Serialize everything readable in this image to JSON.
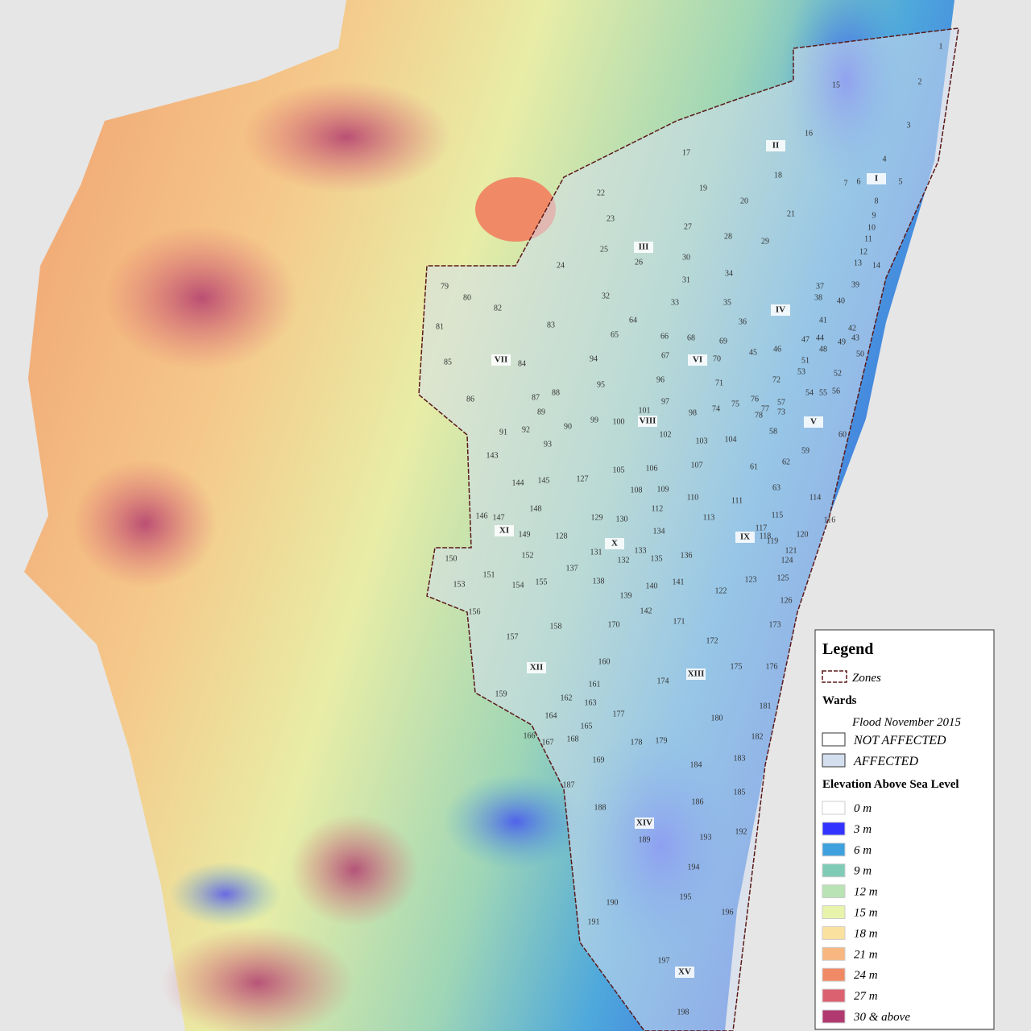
{
  "legend": {
    "title": "Legend",
    "zones_label": "Zones",
    "wards_heading": "Wards",
    "flood_heading": "Flood November 2015",
    "flood_items": [
      {
        "label": "NOT AFFECTED",
        "color": "#ffffff"
      },
      {
        "label": "AFFECTED",
        "color": "#d3dfee"
      }
    ],
    "elevation_heading": "Elevation Above Sea Level",
    "elevation_items": [
      {
        "label": "0 m",
        "color": "#ffffff"
      },
      {
        "label": "3 m",
        "color": "#3333ff"
      },
      {
        "label": "6 m",
        "color": "#3ea0dc"
      },
      {
        "label": "9 m",
        "color": "#7fcbb6"
      },
      {
        "label": "12 m",
        "color": "#b9e3b4"
      },
      {
        "label": "15 m",
        "color": "#e8f3ab"
      },
      {
        "label": "18 m",
        "color": "#fbe1a0"
      },
      {
        "label": "21 m",
        "color": "#f8b781"
      },
      {
        "label": "24 m",
        "color": "#f08a66"
      },
      {
        "label": "27 m",
        "color": "#dc6170"
      },
      {
        "label": "30 & above",
        "color": "#b03a70"
      }
    ]
  },
  "zones": [
    "I",
    "II",
    "III",
    "IV",
    "V",
    "VI",
    "VII",
    "VIII",
    "IX",
    "X",
    "XI",
    "XII",
    "XIII",
    "XIV",
    "XV"
  ],
  "wards": [
    "1",
    "2",
    "3",
    "4",
    "5",
    "6",
    "7",
    "8",
    "9",
    "10",
    "11",
    "12",
    "13",
    "14",
    "15",
    "16",
    "17",
    "18",
    "19",
    "20",
    "21",
    "22",
    "23",
    "24",
    "25",
    "26",
    "27",
    "28",
    "29",
    "30",
    "31",
    "32",
    "33",
    "34",
    "35",
    "36",
    "37",
    "38",
    "39",
    "40",
    "41",
    "42",
    "43",
    "44",
    "45",
    "46",
    "47",
    "48",
    "49",
    "50",
    "51",
    "52",
    "53",
    "54",
    "55",
    "56",
    "57",
    "58",
    "59",
    "60",
    "61",
    "62",
    "63",
    "64",
    "65",
    "66",
    "67",
    "68",
    "69",
    "70",
    "71",
    "72",
    "73",
    "74",
    "75",
    "76",
    "77",
    "78",
    "79",
    "80",
    "81",
    "82",
    "83",
    "84",
    "85",
    "86",
    "87",
    "88",
    "89",
    "90",
    "91",
    "92",
    "93",
    "94",
    "95",
    "96",
    "97",
    "98",
    "99",
    "100",
    "101",
    "102",
    "103",
    "104",
    "105",
    "106",
    "107",
    "108",
    "109",
    "110",
    "111",
    "112",
    "113",
    "114",
    "115",
    "116",
    "117",
    "118",
    "119",
    "120",
    "121",
    "122",
    "123",
    "124",
    "125",
    "126",
    "127",
    "128",
    "129",
    "130",
    "131",
    "132",
    "133",
    "134",
    "135",
    "136",
    "137",
    "138",
    "139",
    "140",
    "141",
    "142",
    "143",
    "144",
    "145",
    "146",
    "147",
    "148",
    "149",
    "150",
    "151",
    "152",
    "153",
    "154",
    "155",
    "156",
    "157",
    "158",
    "159",
    "160",
    "161",
    "162",
    "163",
    "164",
    "165",
    "166",
    "167",
    "168",
    "169",
    "170",
    "171",
    "172",
    "173",
    "174",
    "175",
    "176",
    "177",
    "178",
    "179",
    "180",
    "181",
    "182",
    "183",
    "184",
    "185",
    "186",
    "187",
    "188",
    "189",
    "190",
    "191",
    "192",
    "193",
    "194",
    "195",
    "196",
    "197",
    "198"
  ]
}
